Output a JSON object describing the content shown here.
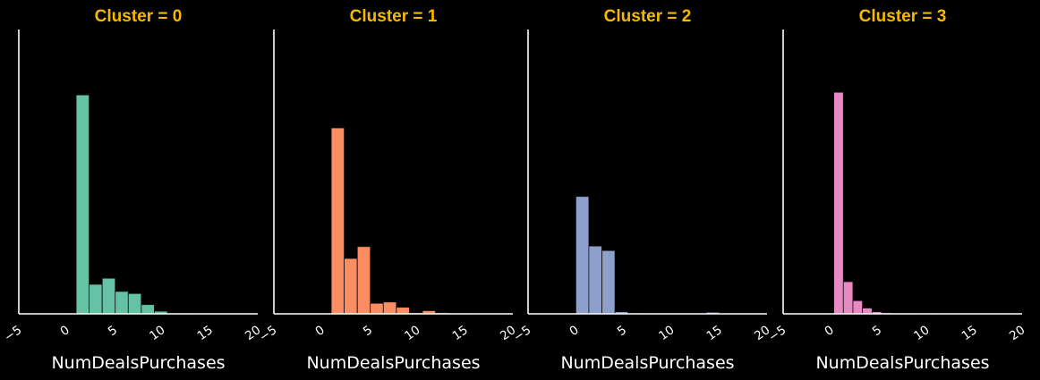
{
  "figure": {
    "background": "#000000",
    "axis_color": "#ffffff",
    "title_color": "#f5b800"
  },
  "chart_data": [
    {
      "type": "bar",
      "title": "Cluster = 0",
      "xlabel": "NumDealsPurchases",
      "ylabel": "",
      "color": "#66c2a5",
      "xlim": [
        -5,
        20
      ],
      "xticks": [
        -5,
        0,
        5,
        10,
        15,
        20
      ],
      "bin_width": 1.36,
      "bins": [
        {
          "x": 1.0,
          "value": 0.83
        },
        {
          "x": 2.36,
          "value": 0.112
        },
        {
          "x": 3.73,
          "value": 0.135
        },
        {
          "x": 5.09,
          "value": 0.085
        },
        {
          "x": 6.45,
          "value": 0.077
        },
        {
          "x": 7.82,
          "value": 0.035
        },
        {
          "x": 9.18,
          "value": 0.01
        },
        {
          "x": 10.55,
          "value": 0.002
        },
        {
          "x": 11.91,
          "value": 0.002
        }
      ],
      "grid": false,
      "legend": "none"
    },
    {
      "type": "bar",
      "title": "Cluster = 1",
      "xlabel": "NumDealsPurchases",
      "ylabel": "",
      "color": "#fc8d62",
      "xlim": [
        -5,
        20
      ],
      "xticks": [
        -5,
        0,
        5,
        10,
        15,
        20
      ],
      "bin_width": 1.36,
      "bins": [
        {
          "x": 1.0,
          "value": 0.705
        },
        {
          "x": 2.36,
          "value": 0.21
        },
        {
          "x": 3.73,
          "value": 0.255
        },
        {
          "x": 5.09,
          "value": 0.04
        },
        {
          "x": 6.45,
          "value": 0.045
        },
        {
          "x": 7.82,
          "value": 0.025
        },
        {
          "x": 9.18,
          "value": 0.004
        },
        {
          "x": 10.55,
          "value": 0.012
        },
        {
          "x": 11.91,
          "value": 0.004
        },
        {
          "x": 13.27,
          "value": 0.002
        },
        {
          "x": 14.64,
          "value": 0.002
        }
      ],
      "grid": false,
      "legend": "none"
    },
    {
      "type": "bar",
      "title": "Cluster = 2",
      "xlabel": "NumDealsPurchases",
      "ylabel": "",
      "color": "#8da0cb",
      "xlim": [
        -5,
        20
      ],
      "xticks": [
        -5,
        0,
        5,
        10,
        15,
        20
      ],
      "bin_width": 1.36,
      "bins": [
        {
          "x": 0.0,
          "value": 0.445
        },
        {
          "x": 1.36,
          "value": 0.257
        },
        {
          "x": 2.73,
          "value": 0.24
        },
        {
          "x": 4.09,
          "value": 0.008
        },
        {
          "x": 5.45,
          "value": 0.003
        },
        {
          "x": 6.82,
          "value": 0.001
        },
        {
          "x": 8.18,
          "value": 0.001
        },
        {
          "x": 9.55,
          "value": 0.001
        },
        {
          "x": 13.64,
          "value": 0.006
        }
      ],
      "grid": false,
      "legend": "none"
    },
    {
      "type": "bar",
      "title": "Cluster = 3",
      "xlabel": "NumDealsPurchases",
      "ylabel": "",
      "color": "#e78ac3",
      "xlim": [
        -5,
        20
      ],
      "xticks": [
        -5,
        0,
        5,
        10,
        15,
        20
      ],
      "bin_width": 1.0,
      "bins": [
        {
          "x": 0.3,
          "value": 0.84
        },
        {
          "x": 1.3,
          "value": 0.122
        },
        {
          "x": 2.3,
          "value": 0.05
        },
        {
          "x": 3.3,
          "value": 0.022
        },
        {
          "x": 4.3,
          "value": 0.008
        },
        {
          "x": 5.3,
          "value": 0.004
        },
        {
          "x": 6.3,
          "value": 0.002
        },
        {
          "x": 7.3,
          "value": 0.002
        },
        {
          "x": 8.3,
          "value": 0.002
        },
        {
          "x": 10.3,
          "value": 0.002
        },
        {
          "x": 14.3,
          "value": 0.001
        }
      ],
      "grid": false,
      "legend": "none"
    }
  ]
}
